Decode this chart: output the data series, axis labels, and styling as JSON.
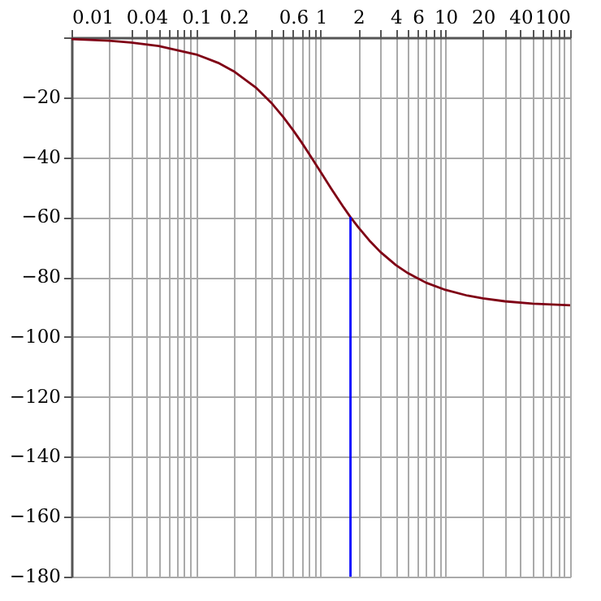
{
  "chart_data": {
    "type": "line",
    "log": "x",
    "grid": true,
    "xlim": [
      0.01,
      100
    ],
    "xticks": [
      0.01,
      {
        "value": 0.02,
        "label": null
      },
      {
        "value": 0.03,
        "label": null
      },
      0.04,
      {
        "value": 0.05,
        "label": null
      },
      {
        "value": 0.06,
        "label": null
      },
      {
        "value": 0.07,
        "label": null
      },
      {
        "value": 0.08,
        "label": null
      },
      {
        "value": 0.09,
        "label": null
      },
      0.1,
      0.2,
      {
        "value": 0.3,
        "label": null
      },
      {
        "value": 0.4,
        "label": null
      },
      {
        "value": 0.5,
        "label": null
      },
      0.6,
      {
        "value": 0.7,
        "label": null
      },
      {
        "value": 0.8,
        "label": null
      },
      {
        "value": 0.9,
        "label": null
      },
      1,
      2,
      {
        "value": 3,
        "label": null
      },
      4,
      {
        "value": 5,
        "label": null
      },
      6,
      {
        "value": 7,
        "label": null
      },
      {
        "value": 8,
        "label": null
      },
      {
        "value": 9,
        "label": null
      },
      10,
      20,
      {
        "value": 30,
        "label": null
      },
      40,
      {
        "value": 50,
        "label": null
      },
      {
        "value": 60,
        "label": null
      },
      {
        "value": 70,
        "label": null
      },
      {
        "value": 80,
        "label": null
      },
      {
        "value": 90,
        "label": null
      },
      100
    ],
    "ylim": [
      -180,
      0
    ],
    "yticks": [
      {
        "value": -180,
        "label": "−180"
      },
      {
        "value": -160,
        "label": "−160"
      },
      {
        "value": -140,
        "label": "−140"
      },
      {
        "value": -120,
        "label": "−120"
      },
      {
        "value": -100,
        "label": "−100"
      },
      {
        "value": -80,
        "label": "−80"
      },
      {
        "value": -60,
        "label": "−60"
      },
      {
        "value": -40,
        "label": "−40"
      },
      {
        "value": -20,
        "label": "−20"
      },
      {
        "value": 0,
        "label": null
      }
    ],
    "series": [
      {
        "color": "#7f0015",
        "x": [
          0.01,
          0.02,
          0.03,
          0.05,
          0.1,
          0.15,
          0.2,
          0.3,
          0.4,
          0.5,
          0.6,
          0.7,
          0.8,
          1,
          1.2,
          1.5,
          1.73,
          2,
          2.5,
          3,
          4,
          5,
          7,
          10,
          15,
          20,
          30,
          50,
          100
        ],
        "values": [
          -0.6,
          -1.1,
          -1.7,
          -2.9,
          -5.7,
          -8.5,
          -11.3,
          -16.7,
          -21.8,
          -26.6,
          -31,
          -35,
          -38.7,
          -45,
          -50.2,
          -56.3,
          -60,
          -63.4,
          -68.2,
          -71.6,
          -76,
          -78.7,
          -81.9,
          -84.3,
          -86.2,
          -87.1,
          -88.1,
          -88.9,
          -89.4
        ]
      },
      {
        "color": "#0000ff",
        "x": [
          1.73,
          1.73
        ],
        "values": [
          -180,
          -60
        ]
      }
    ]
  }
}
